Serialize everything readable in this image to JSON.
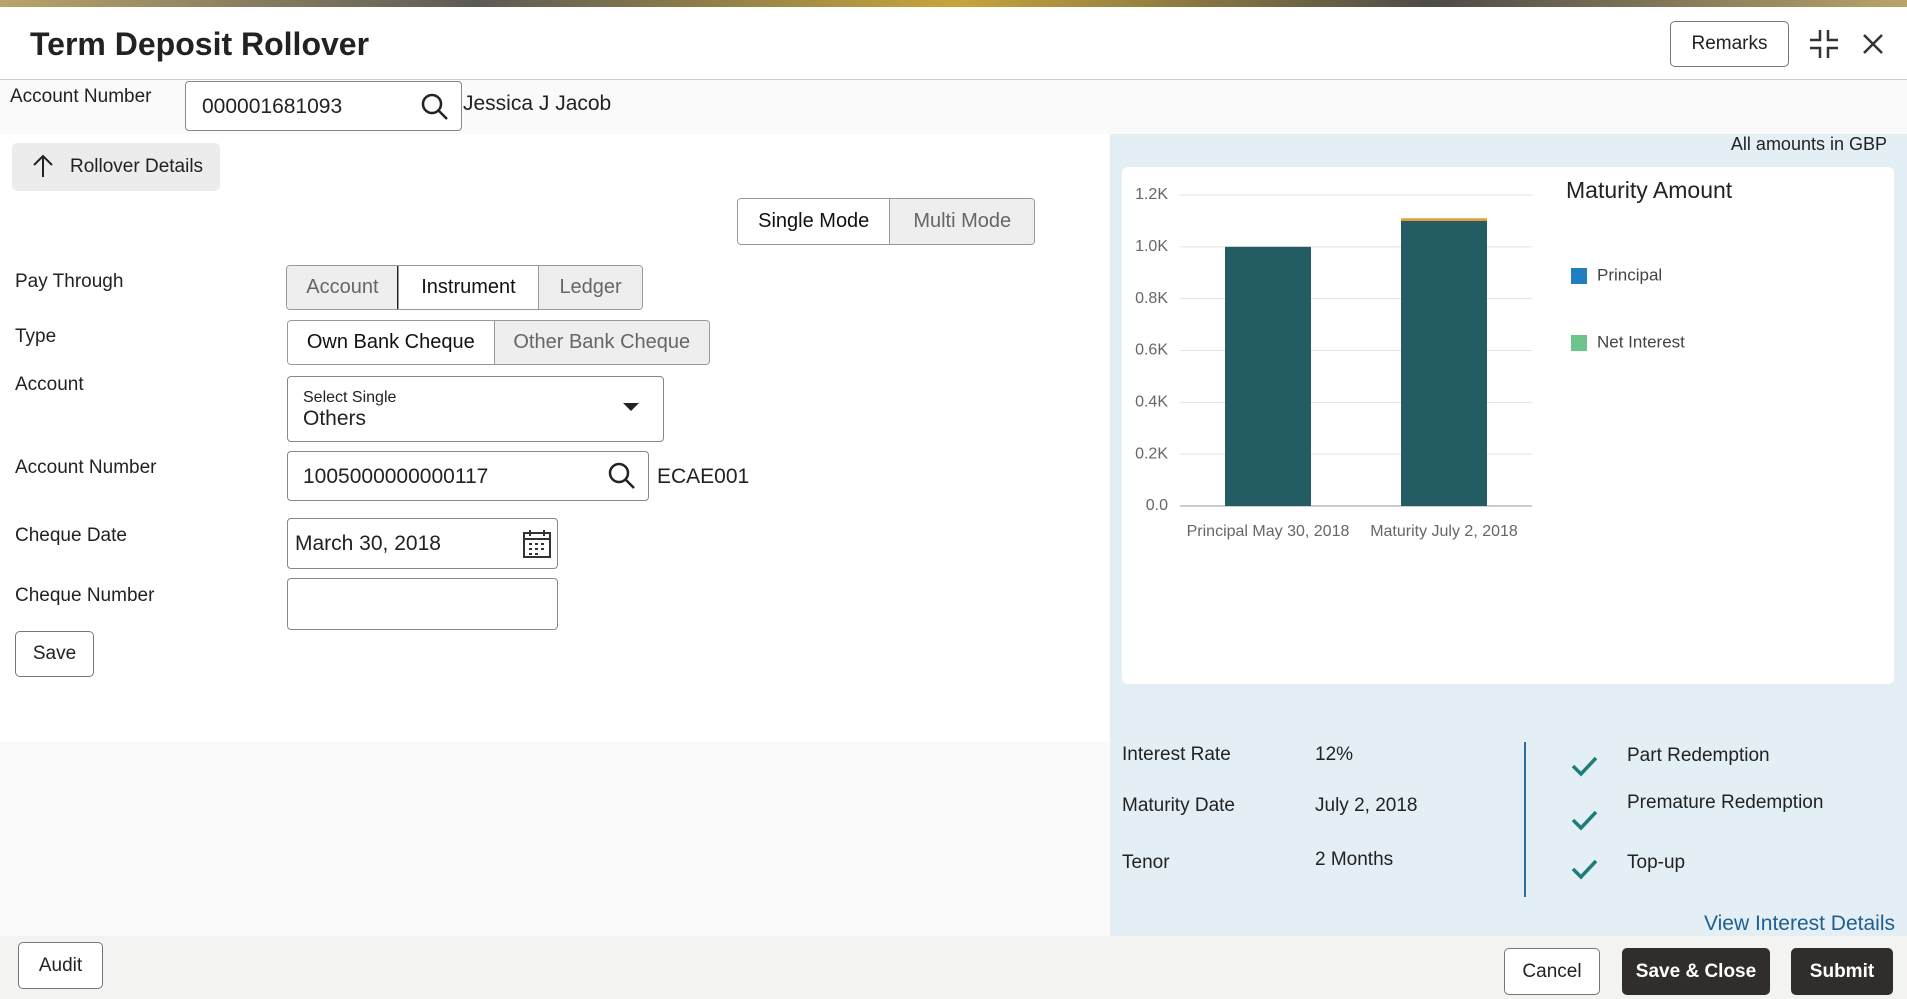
{
  "header": {
    "title": "Term Deposit Rollover",
    "remarks": "Remarks"
  },
  "account": {
    "label": "Account Number",
    "number": "000001681093",
    "name": "Jessica J Jacob"
  },
  "section": {
    "title": "Rollover Details"
  },
  "mode": {
    "options": [
      "Single Mode",
      "Multi Mode"
    ]
  },
  "form": {
    "pay_through": {
      "label": "Pay Through",
      "options": [
        "Account",
        "Instrument",
        "Ledger"
      ]
    },
    "type": {
      "label": "Type",
      "options": [
        "Own Bank Cheque",
        "Other Bank Cheque"
      ]
    },
    "account": {
      "label": "Account",
      "hint": "Select Single",
      "value": "Others"
    },
    "account_number": {
      "label": "Account Number",
      "value": "1005000000000117",
      "branch": "ECAE001"
    },
    "cheque_date": {
      "label": "Cheque Date",
      "value": "March 30, 2018"
    },
    "cheque_number": {
      "label": "Cheque Number"
    },
    "save": "Save"
  },
  "currency_note": "All amounts in GBP",
  "chart_data": {
    "type": "bar",
    "title": "Maturity Amount",
    "stacked": true,
    "categories": [
      "Principal May 30, 2018",
      "Maturity July 2, 2018"
    ],
    "series": [
      {
        "name": "Principal",
        "color": "#1f7fc1",
        "bar_color": "#235d63",
        "values": [
          1000,
          1100
        ]
      },
      {
        "name": "Net Interest",
        "color": "#6cc58a",
        "bar_color": "#e09a2e",
        "values": [
          0,
          10
        ]
      }
    ],
    "ylim": [
      0,
      1200
    ],
    "yticks": [
      {
        "value": 0,
        "label": "0.0"
      },
      {
        "value": 200,
        "label": "0.2K"
      },
      {
        "value": 400,
        "label": "0.4K"
      },
      {
        "value": 600,
        "label": "0.6K"
      },
      {
        "value": 800,
        "label": "0.8K"
      },
      {
        "value": 1000,
        "label": "1.0K"
      },
      {
        "value": 1200,
        "label": "1.2K"
      }
    ],
    "grid": true,
    "legend": "right"
  },
  "summary": {
    "rows": [
      [
        "Interest Rate",
        "12%"
      ],
      [
        "Maturity Date",
        "July 2, 2018"
      ],
      [
        "Tenor",
        "2 Months"
      ]
    ],
    "features": [
      "Part Redemption",
      "Premature Redemption",
      "Top-up"
    ],
    "link": "View Interest Details"
  },
  "footer": {
    "audit": "Audit",
    "cancel": "Cancel",
    "save_close": "Save & Close",
    "submit": "Submit"
  }
}
